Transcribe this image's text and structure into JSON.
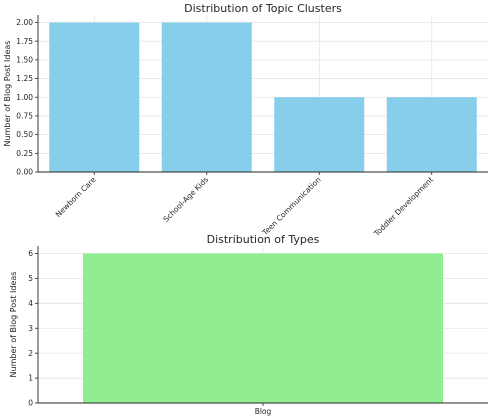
{
  "chart_data": [
    {
      "type": "bar",
      "title": "Distribution of Topic Clusters",
      "xlabel": "",
      "ylabel": "Number of Blog Post Ideas",
      "categories": [
        "Newborn Care",
        "School-Age Kids",
        "Teen Communication",
        "Toddler Development"
      ],
      "values": [
        2,
        2,
        1,
        1
      ],
      "ylim": [
        0,
        2.1
      ],
      "yticks": [
        0.0,
        0.25,
        0.5,
        0.75,
        1.0,
        1.25,
        1.5,
        1.75,
        2.0
      ],
      "ytick_labels": [
        "0.00",
        "0.25",
        "0.50",
        "0.75",
        "1.00",
        "1.25",
        "1.50",
        "1.75",
        "2.00"
      ],
      "xtick_rotation": 45,
      "grid": true,
      "bar_color": "#87ceeb"
    },
    {
      "type": "bar",
      "title": "Distribution of Types",
      "xlabel": "",
      "ylabel": "Number of Blog Post Ideas",
      "categories": [
        "Blog"
      ],
      "values": [
        6
      ],
      "ylim": [
        0,
        6.3
      ],
      "yticks": [
        0,
        1,
        2,
        3,
        4,
        5,
        6
      ],
      "ytick_labels": [
        "0",
        "1",
        "2",
        "3",
        "4",
        "5",
        "6"
      ],
      "xtick_rotation": 0,
      "grid": true,
      "bar_color": "#90ee90"
    }
  ]
}
